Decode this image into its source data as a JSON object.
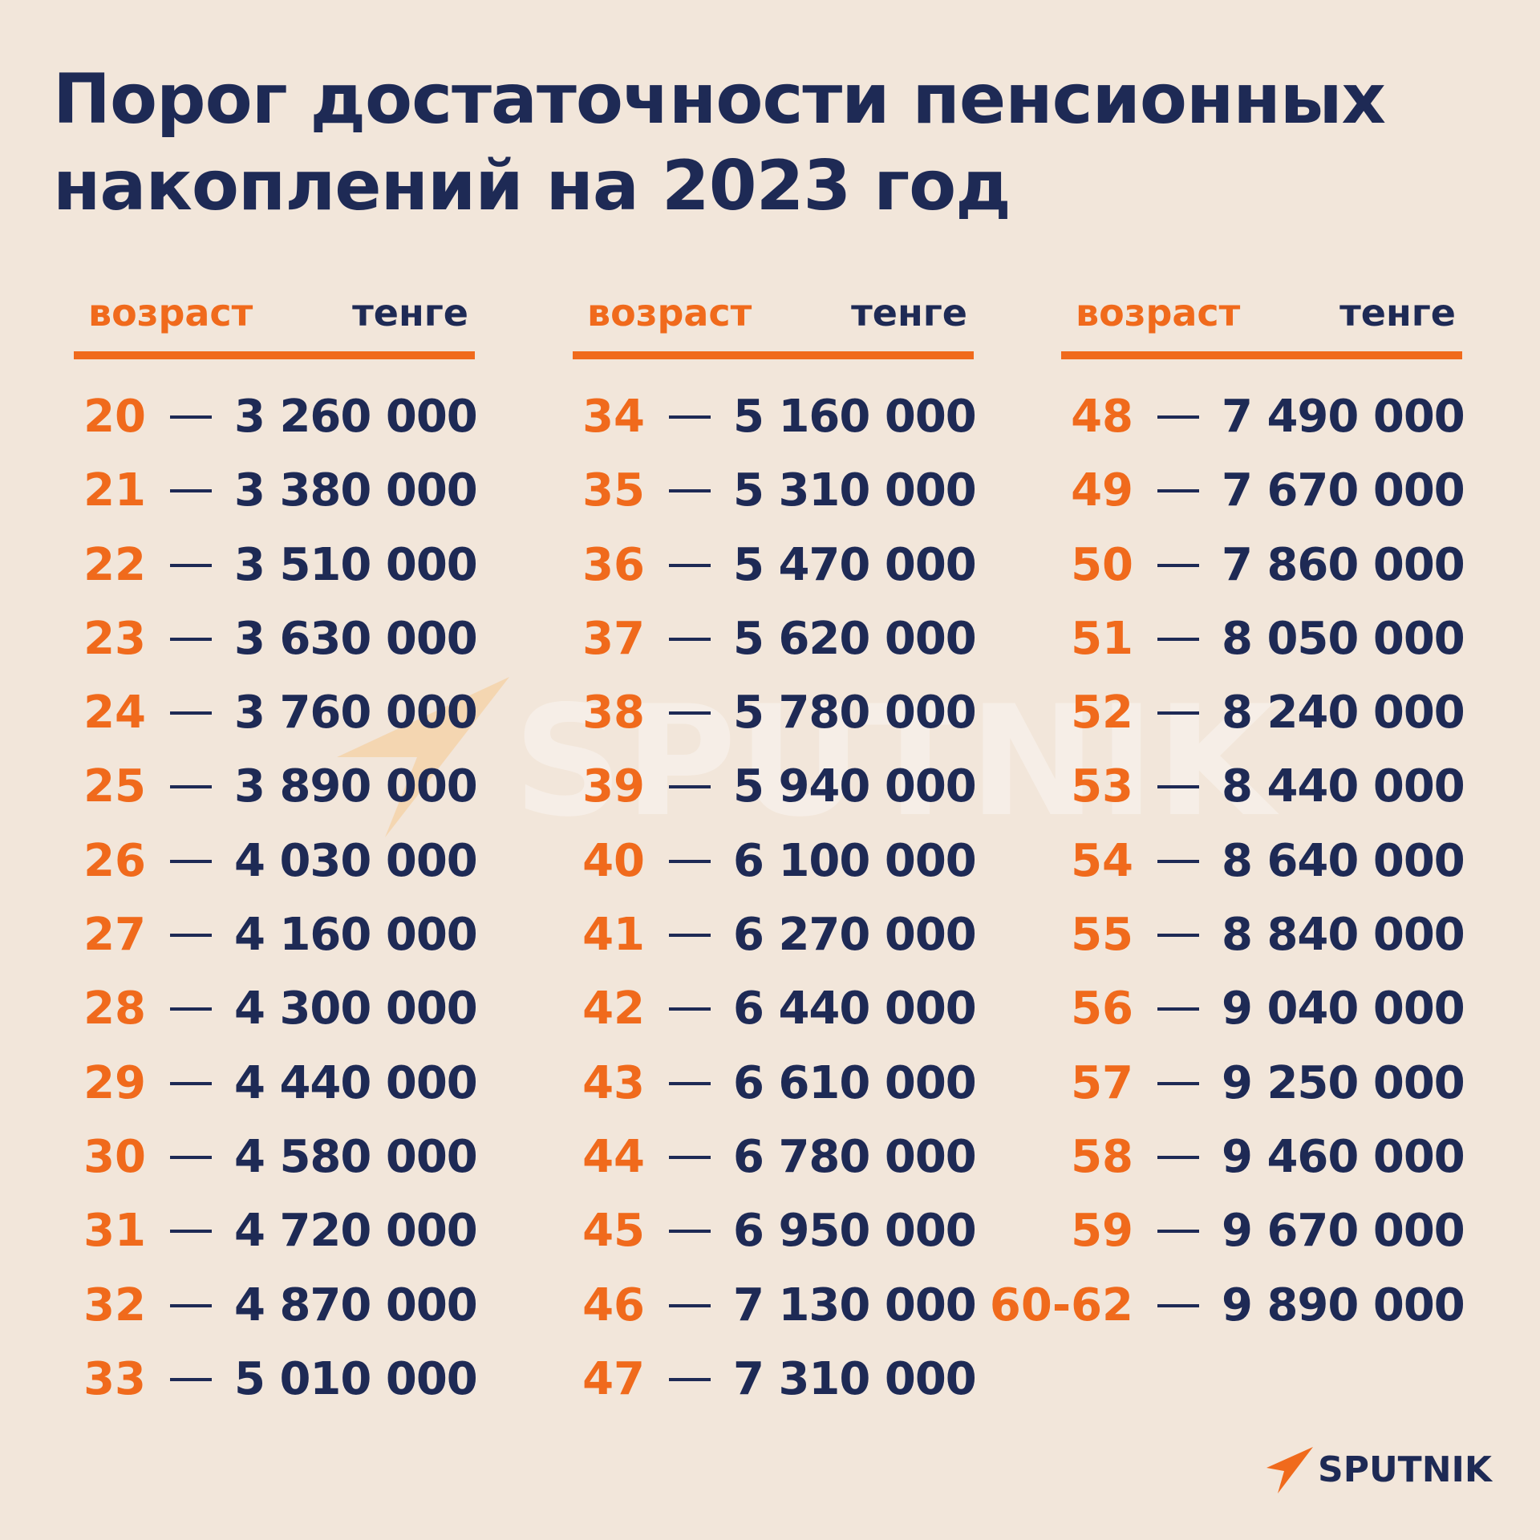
{
  "title": "Порог достаточности пенсионных накоплений на 2023 год",
  "column_headers": {
    "age": "возраст",
    "currency": "тенге"
  },
  "dash": "—",
  "columns": [
    {
      "rows": [
        {
          "age": "20",
          "amount": "3 260 000"
        },
        {
          "age": "21",
          "amount": "3 380 000"
        },
        {
          "age": "22",
          "amount": "3 510 000"
        },
        {
          "age": "23",
          "amount": "3 630 000"
        },
        {
          "age": "24",
          "amount": "3 760 000"
        },
        {
          "age": "25",
          "amount": "3 890 000"
        },
        {
          "age": "26",
          "amount": "4 030 000"
        },
        {
          "age": "27",
          "amount": "4 160 000"
        },
        {
          "age": "28",
          "amount": "4 300 000"
        },
        {
          "age": "29",
          "amount": "4 440 000"
        },
        {
          "age": "30",
          "amount": "4 580 000"
        },
        {
          "age": "31",
          "amount": "4 720 000"
        },
        {
          "age": "32",
          "amount": "4 870 000"
        },
        {
          "age": "33",
          "amount": "5 010 000"
        }
      ]
    },
    {
      "rows": [
        {
          "age": "34",
          "amount": "5 160 000"
        },
        {
          "age": "35",
          "amount": "5 310 000"
        },
        {
          "age": "36",
          "amount": "5 470 000"
        },
        {
          "age": "37",
          "amount": "5 620 000"
        },
        {
          "age": "38",
          "amount": "5 780 000"
        },
        {
          "age": "39",
          "amount": "5 940 000"
        },
        {
          "age": "40",
          "amount": "6 100 000"
        },
        {
          "age": "41",
          "amount": "6 270 000"
        },
        {
          "age": "42",
          "amount": "6 440 000"
        },
        {
          "age": "43",
          "amount": "6 610 000"
        },
        {
          "age": "44",
          "amount": "6 780 000"
        },
        {
          "age": "45",
          "amount": "6 950 000"
        },
        {
          "age": "46",
          "amount": "7 130 000"
        },
        {
          "age": "47",
          "amount": "7 310 000"
        }
      ]
    },
    {
      "rows": [
        {
          "age": "48",
          "amount": "7 490 000"
        },
        {
          "age": "49",
          "amount": "7 670 000"
        },
        {
          "age": "50",
          "amount": "7 860 000"
        },
        {
          "age": "51",
          "amount": "8 050 000"
        },
        {
          "age": "52",
          "amount": "8 240 000"
        },
        {
          "age": "53",
          "amount": "8 440 000"
        },
        {
          "age": "54",
          "amount": "8 640 000"
        },
        {
          "age": "55",
          "amount": "8 840 000"
        },
        {
          "age": "56",
          "amount": "9 040 000"
        },
        {
          "age": "57",
          "amount": "9 250 000"
        },
        {
          "age": "58",
          "amount": "9 460 000"
        },
        {
          "age": "59",
          "amount": "9 670 000"
        },
        {
          "age": "60-62",
          "amount": "9 890 000"
        }
      ]
    }
  ],
  "watermark": "SPUTNIK",
  "brand": {
    "name": "SPUTNIK",
    "icon": "sputnik-logo-icon"
  },
  "colors": {
    "background": "#f2e6da",
    "accent": "#f06a1c",
    "text": "#1e2a55"
  }
}
